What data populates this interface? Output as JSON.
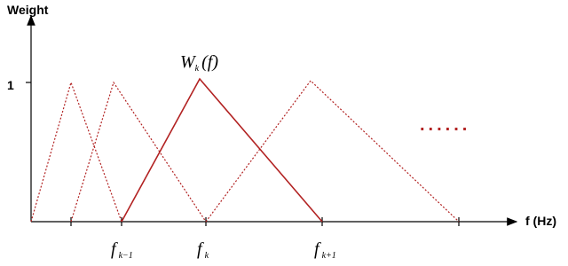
{
  "axes": {
    "y_label": "Weight",
    "y_tick": "1",
    "x_label": "f (Hz)"
  },
  "curve_label": {
    "main": "W",
    "sub": "k",
    "arg": "(f)"
  },
  "x_labels": [
    {
      "main": "f",
      "sub": "k−1"
    },
    {
      "main": "f",
      "sub": "k"
    },
    {
      "main": "f",
      "sub": "k+1"
    }
  ],
  "continuation": "......"
}
